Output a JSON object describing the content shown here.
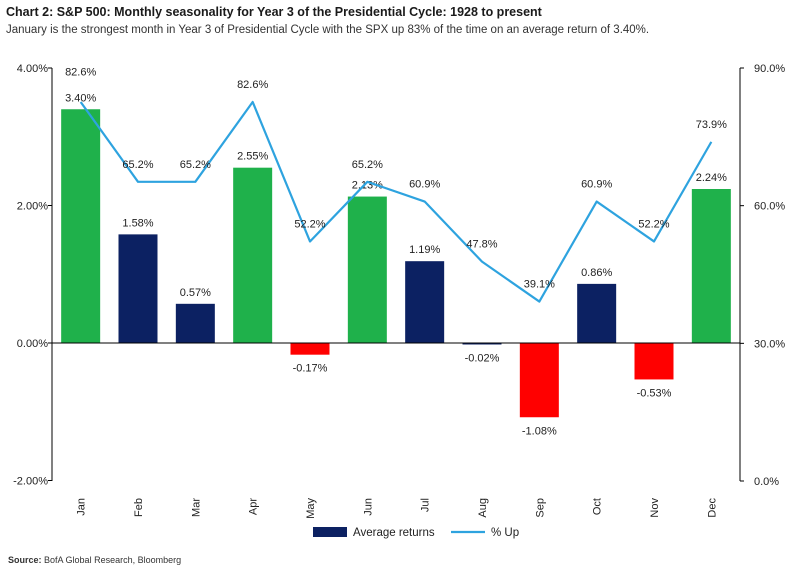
{
  "header": {
    "title": "Chart 2: S&P 500: Monthly seasonality for Year 3 of the Presidential Cycle: 1928 to present",
    "subtitle": "January is the strongest month in Year 3 of Presidential Cycle with the SPX up 83% of the time on an average return of 3.40%."
  },
  "footer": {
    "source_label": "Source:",
    "source_text": "BofA Global Research, Bloomberg"
  },
  "colors": {
    "positive_bar": "#1fb14b",
    "moderate_bar": "#0c2162",
    "negative_bar": "#ff0000",
    "line": "#2ea3df",
    "axis": "#000000"
  },
  "chart_data": {
    "type": "bar",
    "categories": [
      "Jan",
      "Feb",
      "Mar",
      "Apr",
      "May",
      "Jun",
      "Jul",
      "Aug",
      "Sep",
      "Oct",
      "Nov",
      "Dec"
    ],
    "series": [
      {
        "name": "Average returns",
        "axis": "left",
        "values": [
          3.4,
          1.58,
          0.57,
          2.55,
          -0.17,
          2.13,
          1.19,
          -0.02,
          -1.08,
          0.86,
          -0.53,
          2.24
        ],
        "labels": [
          "3.40%",
          "1.58%",
          "0.57%",
          "2.55%",
          "-0.17%",
          "2.13%",
          "1.19%",
          "-0.02%",
          "-1.08%",
          "0.86%",
          "-0.53%",
          "2.24%"
        ],
        "color_class": [
          "positive",
          "moderate",
          "moderate",
          "positive",
          "negative",
          "positive",
          "moderate",
          "moderate",
          "negative",
          "moderate",
          "negative",
          "positive"
        ]
      },
      {
        "name": "% Up",
        "axis": "right",
        "type": "line",
        "values": [
          82.6,
          65.2,
          65.2,
          82.6,
          52.2,
          65.2,
          60.9,
          47.8,
          39.1,
          60.9,
          52.2,
          73.9
        ],
        "labels": [
          "82.6%",
          "65.2%",
          "65.2%",
          "82.6%",
          "52.2%",
          "65.2%",
          "60.9%",
          "47.8%",
          "39.1%",
          "60.9%",
          "52.2%",
          "73.9%"
        ]
      }
    ],
    "y_left": {
      "ylim": [
        -2.0,
        4.0
      ],
      "ticks": [
        "-2.00%",
        "0.00%",
        "2.00%",
        "4.00%"
      ]
    },
    "y_right": {
      "ylim": [
        0.0,
        90.0
      ],
      "ticks": [
        "0.0%",
        "30.0%",
        "60.0%",
        "90.0%"
      ]
    },
    "legend": {
      "position": "bottom",
      "items": [
        {
          "label": "Average returns",
          "symbol": "bar"
        },
        {
          "label": "% Up",
          "symbol": "line"
        }
      ]
    },
    "grid": false
  }
}
